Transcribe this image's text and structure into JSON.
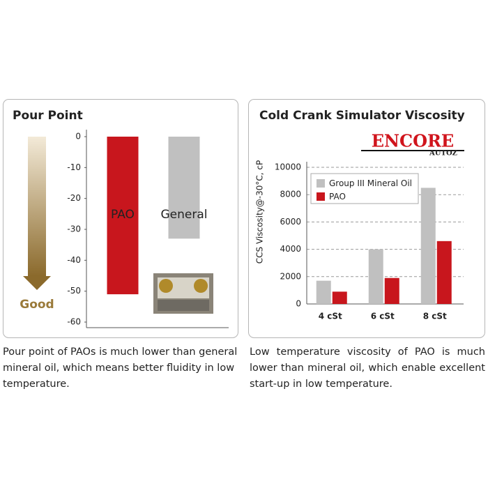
{
  "chart_data": [
    {
      "type": "bar",
      "title": "Pour Point",
      "categories": [
        "PAO",
        "General"
      ],
      "values": [
        -51,
        -33
      ],
      "colors": [
        "#c8161d",
        "#c0c0c0"
      ],
      "ylim": [
        -60,
        0
      ],
      "yticks": [
        0,
        -10,
        -20,
        -30,
        -40,
        -50,
        -60
      ],
      "grid": false,
      "annotation": "Good"
    },
    {
      "type": "bar",
      "title": "Cold Crank Simulator Viscosity",
      "ylabel": "CCS Viscosity@-30°C, cP",
      "categories": [
        "4 cSt",
        "6 cSt",
        "8 cSt"
      ],
      "series": [
        {
          "name": "Group III Mineral Oil",
          "color": "#c0c0c0",
          "values": [
            1700,
            4000,
            8500
          ]
        },
        {
          "name": "PAO",
          "color": "#c8161d",
          "values": [
            900,
            1900,
            4600
          ]
        }
      ],
      "ylim": [
        0,
        10000
      ],
      "yticks": [
        0,
        2000,
        4000,
        6000,
        8000,
        10000
      ],
      "grid": true,
      "legend": "top-left"
    }
  ],
  "logo": {
    "name": "ENCORE",
    "sub": "AUTOZ"
  },
  "captions": [
    "Pour point of PAOs is much lower than general mineral oil, which means better fluidity in low temperature.",
    "Low temperature viscosity of PAO is much lower than mineral oil, which enable excellent start-up in low temperature."
  ]
}
